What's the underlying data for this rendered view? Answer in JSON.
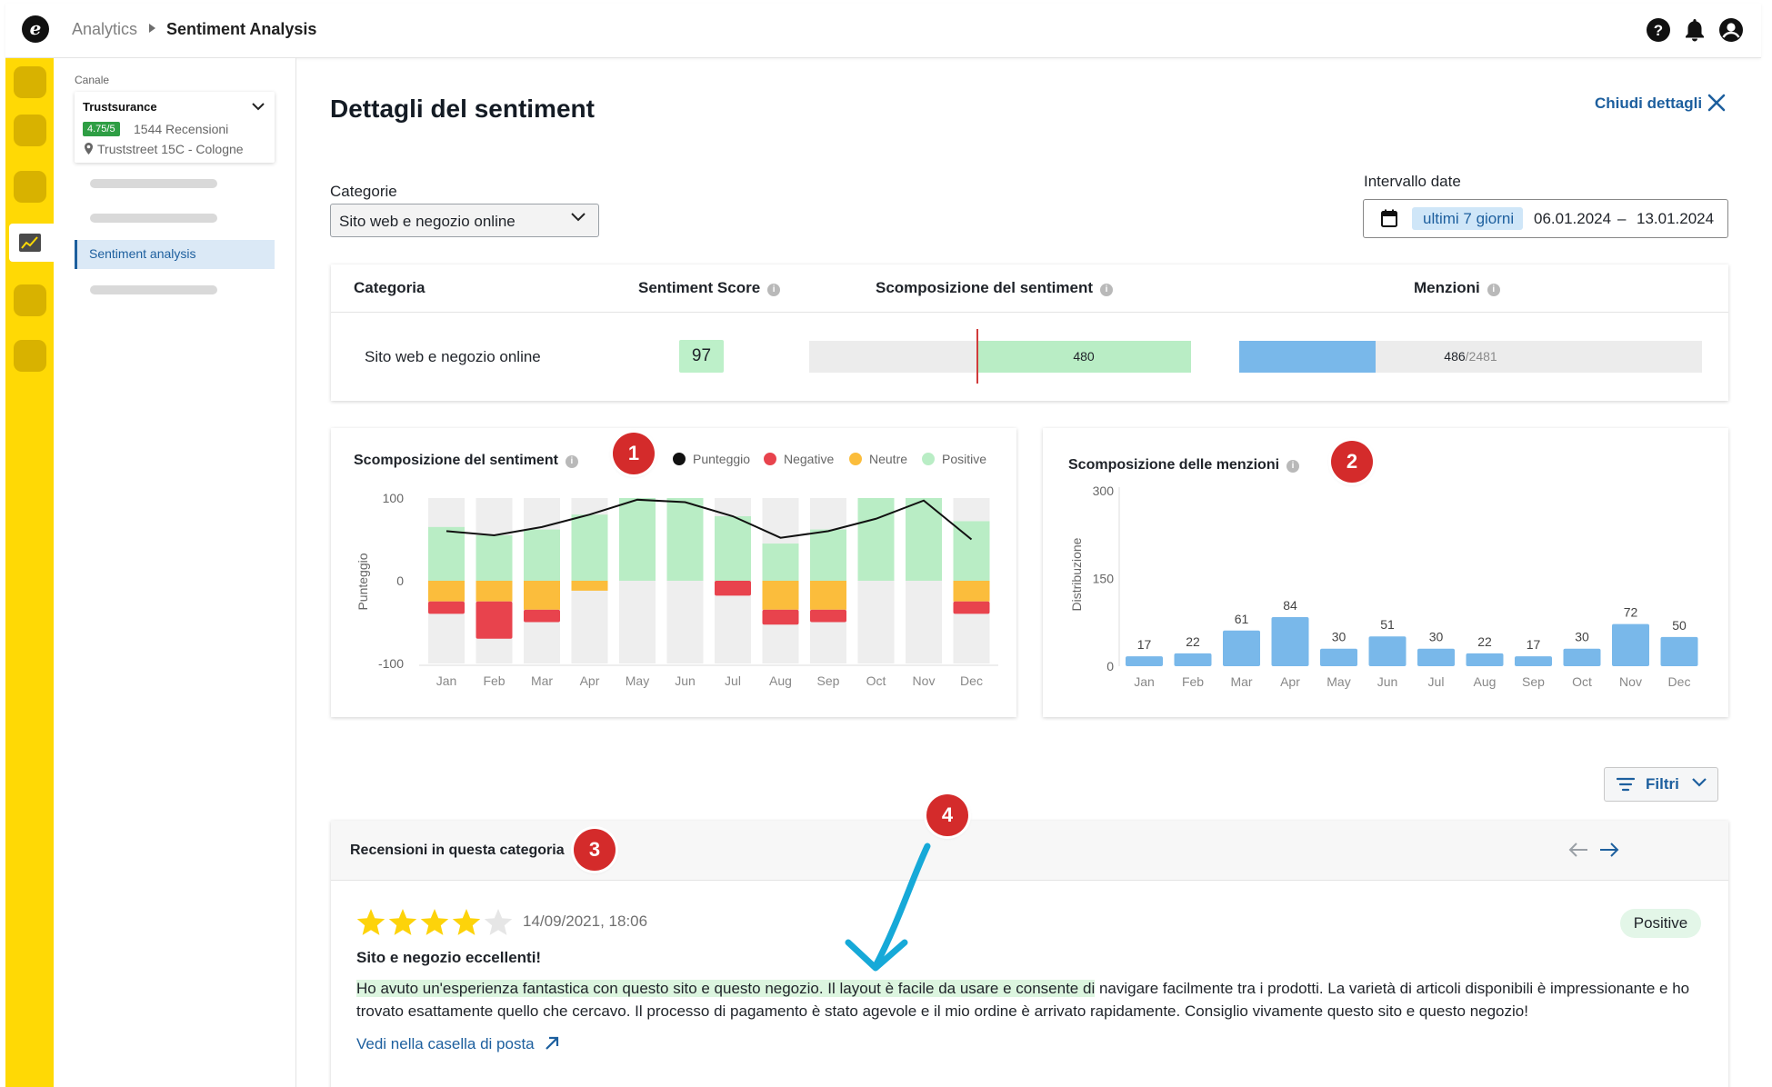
{
  "header": {
    "logo_letter": "e",
    "breadcrumb_parent": "Analytics",
    "breadcrumb_current": "Sentiment Analysis",
    "icons": [
      "help-icon",
      "bell-icon",
      "user-icon"
    ]
  },
  "sidebar": {
    "channel_label": "Canale",
    "channel": {
      "name": "Trustsurance",
      "rating": "4.75/5",
      "reviews": "1544 Recensioni",
      "address": "Truststreet 15C - Cologne"
    },
    "active_item": "Sentiment analysis"
  },
  "main": {
    "title": "Dettagli del sentiment",
    "close_label": "Chiudi dettagli",
    "categories_label": "Categorie",
    "category_value": "Sito web e negozio online",
    "interval_label": "Intervallo date",
    "interval_preset": "ultimi 7 giorni",
    "date_from": "06.01.2024",
    "date_sep": "–",
    "date_to": "13.01.2024"
  },
  "table": {
    "headers": [
      "Categoria",
      "Sentiment Score",
      "Scomposizione del sentiment",
      "Menzioni"
    ],
    "row": {
      "category": "Sito web e negozio online",
      "score": "97",
      "sentiment_value": "480",
      "mentions_value": "486",
      "mentions_total": "/2481"
    }
  },
  "chart1": {
    "title": "Scomposizione del sentiment",
    "legend": [
      "Punteggio",
      "Negative",
      "Neutre",
      "Positive"
    ],
    "ylabel": "Punteggio"
  },
  "chart2": {
    "title": "Scomposizione delle menzioni",
    "ylabel": "Distribuzione"
  },
  "chart_data": [
    {
      "type": "bar",
      "title": "Scomposizione del sentiment",
      "ylabel": "Punteggio",
      "ylim": [
        -100,
        100
      ],
      "yticks": [
        100,
        0,
        -100
      ],
      "categories": [
        "Jan",
        "Feb",
        "Mar",
        "Apr",
        "May",
        "Jun",
        "Jul",
        "Aug",
        "Sep",
        "Oct",
        "Nov",
        "Dec"
      ],
      "series": [
        {
          "name": "Positive",
          "values": [
            65,
            55,
            62,
            80,
            100,
            100,
            78,
            45,
            62,
            100,
            100,
            72
          ]
        },
        {
          "name": "Neutre",
          "values": [
            -25,
            -25,
            -35,
            -12,
            0,
            0,
            0,
            -35,
            -35,
            0,
            0,
            -25
          ]
        },
        {
          "name": "Negative",
          "values": [
            -15,
            -45,
            -15,
            0,
            0,
            0,
            -18,
            -18,
            -15,
            0,
            0,
            -15
          ]
        },
        {
          "name": "Punteggio",
          "values": [
            60,
            55,
            65,
            80,
            98,
            95,
            78,
            52,
            60,
            75,
            97,
            50
          ]
        }
      ],
      "colors": {
        "Punteggio": "#111111",
        "Negative": "#e8434d",
        "Neutre": "#fbbd3c",
        "Positive": "#b9edc5"
      },
      "grid": false,
      "legend_position": "top-right"
    },
    {
      "type": "bar",
      "title": "Scomposizione delle menzioni",
      "ylabel": "Distribuzione",
      "ylim": [
        0,
        300
      ],
      "yticks": [
        300,
        150,
        0
      ],
      "categories": [
        "Jan",
        "Feb",
        "Mar",
        "Apr",
        "May",
        "Jun",
        "Jul",
        "Aug",
        "Sep",
        "Oct",
        "Nov",
        "Dec"
      ],
      "values": [
        17,
        22,
        61,
        84,
        30,
        51,
        30,
        22,
        17,
        30,
        72,
        50
      ],
      "bar_color": "#79b8ea"
    }
  ],
  "annotations": [
    "1",
    "2",
    "3",
    "4"
  ],
  "filters": {
    "label": "Filtri"
  },
  "reviews": {
    "title": "Recensioni in questa categoria",
    "item": {
      "stars": 4,
      "max_stars": 5,
      "date": "14/09/2021, 18:06",
      "badge": "Positive",
      "headline": "Sito e negozio eccellenti!",
      "body_highlight": "Ho avuto un'esperienza fantastica con questo sito e questo negozio. Il layout è facile da usare e consente di",
      "body_rest": " navigare facilmente tra i prodotti. La varietà di articoli disponibili è impressionante e ho trovato esattamente quello che cercavo. Il processo di pagamento è stato agevole e il mio ordine è arrivato rapidamente. Consiglio vivamente questo sito e questo negozio!",
      "link": "Vedi nella casella di posta"
    }
  },
  "colors": {
    "brand_yellow": "#ffd905",
    "accent_blue": "#1d5f9e",
    "positive_green": "#b9edc5"
  }
}
